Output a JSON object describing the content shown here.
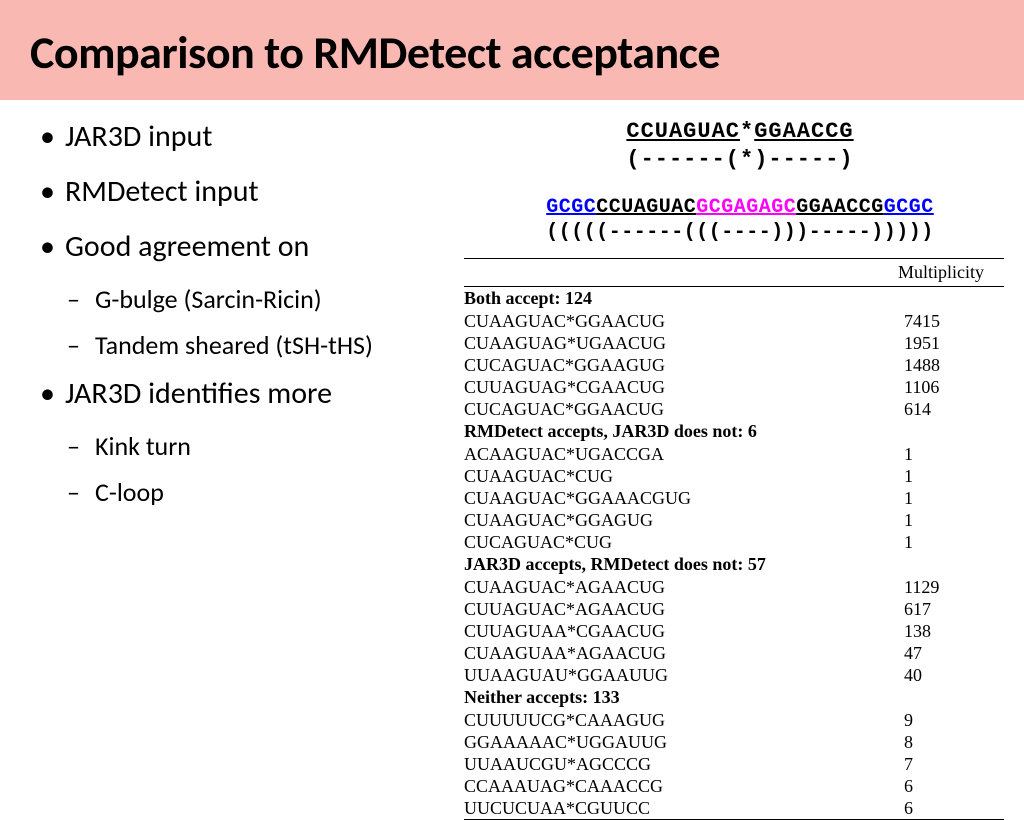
{
  "title": "Comparison to RMDetect acceptance",
  "bullets": {
    "b1": "JAR3D input",
    "b2": "RMDetect input",
    "b3": "Good agreement on",
    "b3a": "G-bulge (Sarcin-Ricin)",
    "b3b": "Tandem sheared (tSH-tHS)",
    "b4": "JAR3D identifies more",
    "b4a": "Kink turn",
    "b4b": "C-loop"
  },
  "seq1": {
    "left": "CCUAGUAC",
    "star": "*",
    "right": "GGAACCG",
    "paren": "(------(*)-----)"
  },
  "seq2": {
    "p1": "GCGC",
    "p2": "CCUAGUAC",
    "p3": "GCGAGAGC",
    "p4": "GGAACCG",
    "p5": "GCGC",
    "paren": "(((((------(((----)))-----)))))"
  },
  "table": {
    "header": "Multiplicity",
    "groups": [
      {
        "title": "Both accept: 124",
        "rows": [
          {
            "s": "CUAAGUAC*GGAACUG",
            "m": "7415"
          },
          {
            "s": "CUAAGUAG*UGAACUG",
            "m": "1951"
          },
          {
            "s": "CUCAGUAC*GGAAGUG",
            "m": "1488"
          },
          {
            "s": "CUUAGUAG*CGAACUG",
            "m": "1106"
          },
          {
            "s": "CUCAGUAC*GGAACUG",
            "m": "614"
          }
        ]
      },
      {
        "title": "RMDetect accepts, JAR3D does not: 6",
        "rows": [
          {
            "s": "ACAAGUAC*UGACCGA",
            "m": "1"
          },
          {
            "s": "CUAAGUAC*CUG",
            "m": "1"
          },
          {
            "s": "CUAAGUAC*GGAAACGUG",
            "m": "1"
          },
          {
            "s": "CUAAGUAC*GGAGUG",
            "m": "1"
          },
          {
            "s": "CUCAGUAC*CUG",
            "m": "1"
          }
        ]
      },
      {
        "title": "JAR3D accepts, RMDetect does not: 57",
        "rows": [
          {
            "s": "CUAAGUAC*AGAACUG",
            "m": "1129"
          },
          {
            "s": "CUUAGUAC*AGAACUG",
            "m": "617"
          },
          {
            "s": "CUUAGUAA*CGAACUG",
            "m": "138"
          },
          {
            "s": "CUAAGUAA*AGAACUG",
            "m": "47"
          },
          {
            "s": "UUAAGUAU*GGAAUUG",
            "m": "40"
          }
        ]
      },
      {
        "title": "Neither accepts: 133",
        "rows": [
          {
            "s": "CUUUUUCG*CAAAGUG",
            "m": "9"
          },
          {
            "s": "GGAAAAAC*UGGAUUG",
            "m": "8"
          },
          {
            "s": "UUAAUCGU*AGCCCG",
            "m": "7"
          },
          {
            "s": "CCAAAUAG*CAAACCG",
            "m": "6"
          },
          {
            "s": "UUCUCUAA*CGUUCC",
            "m": "6"
          }
        ]
      }
    ]
  }
}
